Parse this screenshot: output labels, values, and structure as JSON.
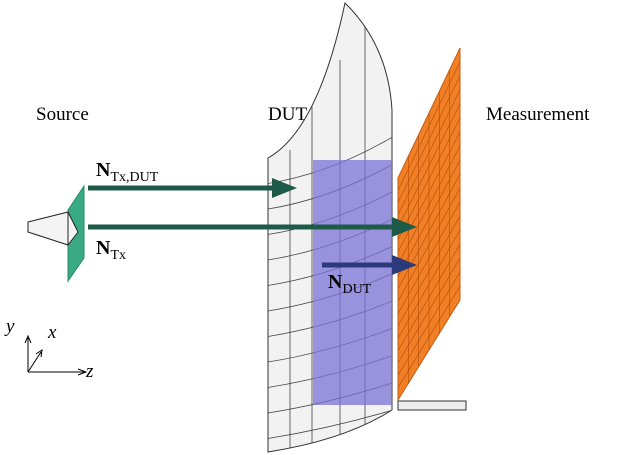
{
  "labels": {
    "source": "Source",
    "dut": "DUT",
    "measurement": "Measurement"
  },
  "arrows": [
    {
      "symbol": "N",
      "subscript": "Tx,DUT"
    },
    {
      "symbol": "N",
      "subscript": "Tx"
    },
    {
      "symbol": "N",
      "subscript": "DUT"
    }
  ],
  "axes": {
    "y": "y",
    "x": "x",
    "z": "z"
  }
}
